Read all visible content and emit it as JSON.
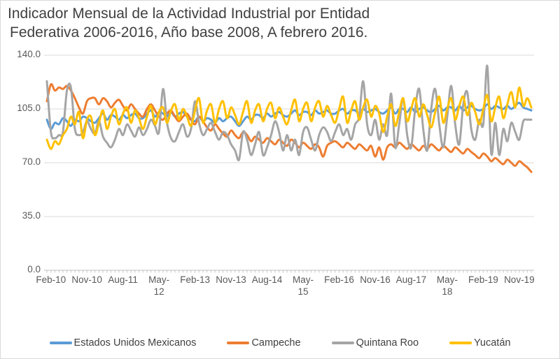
{
  "chart_data": {
    "type": "line",
    "title": "Indicador Mensual de la Actividad Industrial por Entidad Federativa 2006-2016, Año base 2008, A febrero 2016.",
    "title_lines": [
      "Indicador Mensual de la Actividad Industrial por Entidad",
      "Federativa 2006-2016, Año base 2008, A febrero 2016."
    ],
    "ylim": [
      0,
      140
    ],
    "grid": "horizontal",
    "legend_position": "bottom",
    "colors": {
      "grid": "#D9D9D9",
      "axis": "#BFBFBF",
      "tick": "#C9C9C9",
      "axis_text": "#595959",
      "title_text": "#404040",
      "border": "#D9D9D9"
    },
    "y_ticks": [
      {
        "value": 0,
        "label": "0.0"
      },
      {
        "value": 35,
        "label": "35.0"
      },
      {
        "value": 70,
        "label": "70.0"
      },
      {
        "value": 105,
        "label": "105.0"
      },
      {
        "value": 140,
        "label": "140.0"
      }
    ],
    "x_tick_labels": [
      {
        "index": 1,
        "lines": [
          "Feb-10"
        ]
      },
      {
        "index": 10,
        "lines": [
          "Nov-10"
        ]
      },
      {
        "index": 19,
        "lines": [
          "Aug-11"
        ]
      },
      {
        "index": 28,
        "lines": [
          "May-",
          "12"
        ]
      },
      {
        "index": 37,
        "lines": [
          "Feb-13"
        ]
      },
      {
        "index": 46,
        "lines": [
          "Nov-13"
        ]
      },
      {
        "index": 55,
        "lines": [
          "Aug-14"
        ]
      },
      {
        "index": 64,
        "lines": [
          "May-",
          "15"
        ]
      },
      {
        "index": 73,
        "lines": [
          "Feb-16"
        ]
      },
      {
        "index": 82,
        "lines": [
          "Nov-16"
        ]
      },
      {
        "index": 91,
        "lines": [
          "Aug-17"
        ]
      },
      {
        "index": 100,
        "lines": [
          "May-",
          "18"
        ]
      },
      {
        "index": 109,
        "lines": [
          "Feb-19"
        ]
      },
      {
        "index": 118,
        "lines": [
          "Nov-19"
        ]
      }
    ],
    "x": [
      "Jan-10",
      "Feb-10",
      "Mar-10",
      "Apr-10",
      "May-10",
      "Jun-10",
      "Jul-10",
      "Aug-10",
      "Sep-10",
      "Oct-10",
      "Nov-10",
      "Dec-10",
      "Jan-11",
      "Feb-11",
      "Mar-11",
      "Apr-11",
      "May-11",
      "Jun-11",
      "Jul-11",
      "Aug-11",
      "Sep-11",
      "Oct-11",
      "Nov-11",
      "Dec-11",
      "Jan-12",
      "Feb-12",
      "Mar-12",
      "Apr-12",
      "May-12",
      "Jun-12",
      "Jul-12",
      "Aug-12",
      "Sep-12",
      "Oct-12",
      "Nov-12",
      "Dec-12",
      "Jan-13",
      "Feb-13",
      "Mar-13",
      "Apr-13",
      "May-13",
      "Jun-13",
      "Jul-13",
      "Aug-13",
      "Sep-13",
      "Oct-13",
      "Nov-13",
      "Dec-13",
      "Jan-14",
      "Feb-14",
      "Mar-14",
      "Apr-14",
      "May-14",
      "Jun-14",
      "Jul-14",
      "Aug-14",
      "Sep-14",
      "Oct-14",
      "Nov-14",
      "Dec-14",
      "Jan-15",
      "Feb-15",
      "Mar-15",
      "Apr-15",
      "May-15",
      "Jun-15",
      "Jul-15",
      "Aug-15",
      "Sep-15",
      "Oct-15",
      "Nov-15",
      "Dec-15",
      "Jan-16",
      "Feb-16",
      "Mar-16",
      "Apr-16",
      "May-16",
      "Jun-16",
      "Jul-16",
      "Aug-16",
      "Sep-16",
      "Oct-16",
      "Nov-16",
      "Dec-16",
      "Jan-17",
      "Feb-17",
      "Mar-17",
      "Apr-17",
      "May-17",
      "Jun-17",
      "Jul-17",
      "Aug-17",
      "Sep-17",
      "Oct-17",
      "Nov-17",
      "Dec-17",
      "Jan-18",
      "Feb-18",
      "Mar-18",
      "Apr-18",
      "May-18",
      "Jun-18",
      "Jul-18",
      "Aug-18",
      "Sep-18",
      "Oct-18",
      "Nov-18",
      "Dec-18",
      "Jan-19",
      "Feb-19",
      "Mar-19",
      "Apr-19",
      "May-19",
      "Jun-19",
      "Jul-19",
      "Aug-19",
      "Sep-19",
      "Oct-19",
      "Nov-19",
      "Dec-19",
      "Jan-20",
      "Feb-20"
    ],
    "series": [
      {
        "name": "Estados Unidos Mexicanos",
        "color": "#5B9BD5",
        "values": [
          98,
          92,
          96,
          95,
          99,
          97,
          94,
          98,
          97,
          100,
          99,
          97,
          96,
          99,
          102,
          98,
          101,
          100,
          98,
          101,
          99,
          101,
          102,
          99,
          99,
          102,
          104,
          100,
          103,
          102,
          100,
          103,
          100,
          102,
          103,
          100,
          98,
          97,
          100,
          97,
          99,
          98,
          96,
          99,
          97,
          99,
          100,
          97,
          94,
          97,
          100,
          98,
          101,
          101,
          99,
          102,
          100,
          102,
          103,
          101,
          100,
          102,
          104,
          101,
          103,
          103,
          101,
          104,
          102,
          103,
          104,
          102,
          102,
          104,
          105,
          102,
          104,
          104,
          102,
          105,
          103,
          104,
          105,
          103,
          102,
          104,
          106,
          102,
          105,
          105,
          103,
          106,
          103,
          105,
          106,
          104,
          103,
          105,
          107,
          104,
          106,
          106,
          104,
          107,
          104,
          106,
          107,
          105,
          104,
          105,
          108,
          105,
          107,
          106,
          105,
          107,
          105,
          107,
          109,
          106,
          105,
          104
        ]
      },
      {
        "name": "Campeche",
        "color": "#ED7D31",
        "values": [
          110,
          121,
          117,
          119,
          118,
          120,
          117,
          112,
          106,
          102,
          110,
          112,
          112,
          108,
          112,
          110,
          106,
          109,
          111,
          107,
          104,
          108,
          105,
          102,
          100,
          105,
          108,
          104,
          100,
          98,
          102,
          104,
          100,
          97,
          100,
          102,
          98,
          95,
          100,
          97,
          93,
          91,
          95,
          92,
          89,
          87,
          91,
          88,
          86,
          90,
          88,
          84,
          87,
          85,
          83,
          86,
          84,
          82,
          85,
          83,
          81,
          85,
          83,
          80,
          83,
          81,
          79,
          82,
          80,
          74,
          81,
          83,
          84,
          82,
          80,
          83,
          81,
          79,
          82,
          80,
          78,
          81,
          74,
          80,
          72,
          80,
          82,
          80,
          83,
          81,
          79,
          82,
          80,
          78,
          81,
          79,
          82,
          80,
          78,
          81,
          79,
          77,
          80,
          78,
          76,
          79,
          77,
          75,
          73,
          76,
          74,
          71,
          73,
          71,
          69,
          72,
          70,
          68,
          71,
          69,
          67,
          64
        ]
      },
      {
        "name": "Quintana Roo",
        "color": "#A5A5A5",
        "values": [
          123,
          90,
          86,
          88,
          90,
          117,
          119,
          92,
          88,
          90,
          97,
          92,
          89,
          97,
          87,
          83,
          80,
          85,
          92,
          88,
          95,
          91,
          87,
          93,
          88,
          92,
          98,
          94,
          90,
          118,
          96,
          86,
          84,
          90,
          95,
          87,
          92,
          110,
          96,
          88,
          92,
          96,
          90,
          85,
          90,
          88,
          82,
          78,
          72,
          90,
          85,
          75,
          82,
          90,
          75,
          80,
          88,
          97,
          90,
          78,
          88,
          78,
          85,
          75,
          90,
          93,
          85,
          78,
          88,
          93,
          90,
          84,
          90,
          95,
          88,
          92,
          85,
          95,
          100,
          123,
          95,
          88,
          98,
          85,
          95,
          88,
          115,
          80,
          95,
          112,
          88,
          80,
          105,
          118,
          92,
          78,
          105,
          118,
          95,
          80,
          100,
          120,
          95,
          82,
          108,
          116,
          92,
          85,
          98,
          95,
          133,
          76,
          96,
          75,
          92,
          84,
          96,
          90,
          85,
          97,
          98,
          98
        ]
      },
      {
        "name": "Yucatán",
        "color": "#FFC000",
        "values": [
          85,
          79,
          84,
          82,
          88,
          92,
          100,
          95,
          103,
          86,
          98,
          100,
          88,
          96,
          104,
          92,
          100,
          105,
          95,
          102,
          106,
          96,
          104,
          99,
          92,
          100,
          107,
          95,
          103,
          106,
          96,
          104,
          108,
          98,
          105,
          100,
          94,
          104,
          112,
          96,
          104,
          108,
          96,
          105,
          110,
          99,
          106,
          101,
          95,
          103,
          110,
          96,
          104,
          108,
          97,
          105,
          109,
          99,
          106,
          100,
          95,
          104,
          111,
          97,
          105,
          109,
          97,
          106,
          110,
          100,
          107,
          101,
          96,
          105,
          113,
          96,
          104,
          110,
          98,
          106,
          111,
          100,
          107,
          102,
          90,
          100,
          108,
          94,
          103,
          112,
          97,
          105,
          112,
          100,
          108,
          101,
          93,
          103,
          113,
          96,
          105,
          112,
          98,
          107,
          113,
          101,
          109,
          103,
          95,
          105,
          114,
          97,
          106,
          113,
          99,
          108,
          116,
          106,
          119,
          107,
          112,
          106
        ]
      }
    ]
  }
}
